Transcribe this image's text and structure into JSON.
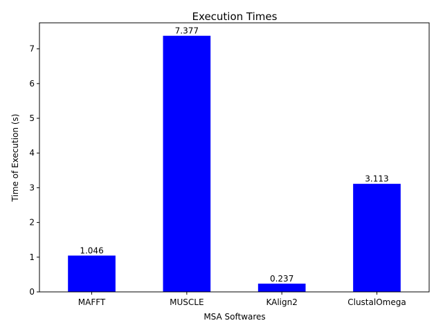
{
  "chart_data": {
    "type": "bar",
    "title": "Execution Times",
    "xlabel": "MSA Softwares",
    "ylabel": "Time of Execution (s)",
    "categories": [
      "MAFFT",
      "MUSCLE",
      "KAlign2",
      "ClustalOmega"
    ],
    "values": [
      1.046,
      7.377,
      0.237,
      3.113
    ],
    "data_labels": [
      "1.046",
      "7.377",
      "0.237",
      "3.113"
    ],
    "yticks": [
      0,
      1,
      2,
      3,
      4,
      5,
      6,
      7
    ],
    "ylim": [
      0,
      7.75
    ],
    "grid": false,
    "legend": "none",
    "bar_color": "#0000ff"
  }
}
